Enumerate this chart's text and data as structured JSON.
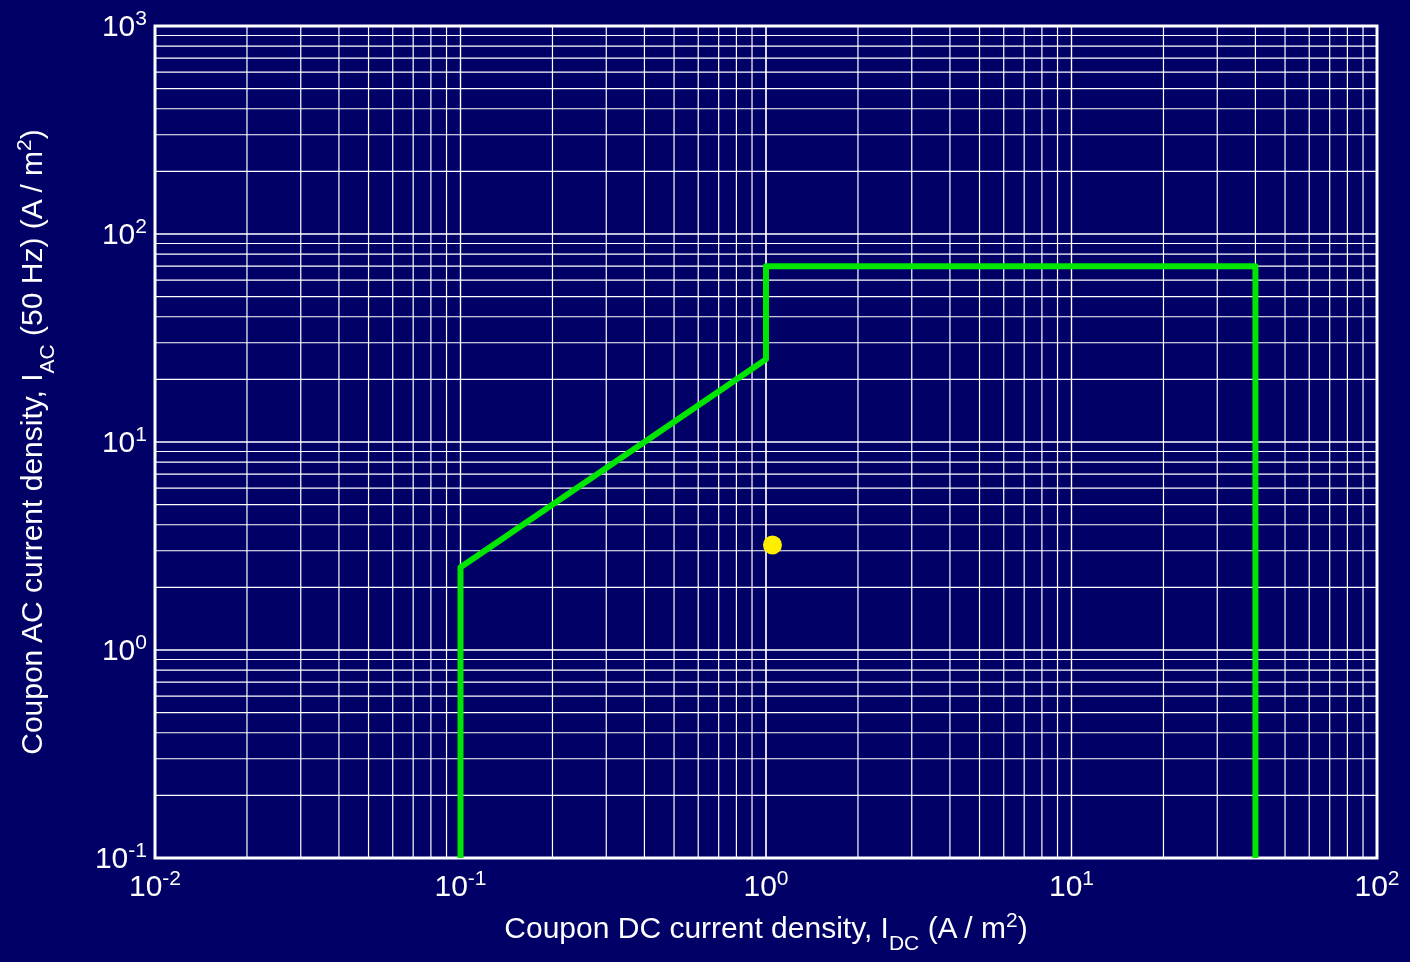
{
  "chart_data": {
    "type": "line",
    "xlabel": "Coupon DC current density, I$_{DC}$ (A / m$^{2}$)",
    "ylabel": "Coupon AC current density, I$_{AC}$ (50 Hz) (A / m$^{2}$)",
    "log": "xy",
    "grid": true,
    "xlim": [
      0.01,
      100
    ],
    "ylim": [
      0.1,
      1000
    ],
    "xticks": [
      {
        "value": 0.01,
        "label": "10$^{-2}$"
      },
      {
        "value": 0.1,
        "label": "10$^{-1}$"
      },
      {
        "value": 1,
        "label": "10$^{0}$"
      },
      {
        "value": 10,
        "label": "10$^{1}$"
      },
      {
        "value": 100,
        "label": "10$^{2}$"
      }
    ],
    "yticks": [
      {
        "value": 0.1,
        "label": "10$^{-1}$"
      },
      {
        "value": 1,
        "label": "10$^{0}$"
      },
      {
        "value": 10,
        "label": "10$^{1}$"
      },
      {
        "value": 100,
        "label": "10$^{2}$"
      },
      {
        "value": 1000,
        "label": "10$^{3}$"
      }
    ],
    "series": [
      {
        "color": "#00e600",
        "line_style": "solid",
        "marker": "none",
        "x": [
          0.1,
          0.1,
          1,
          1,
          40,
          40
        ],
        "values": [
          0.1,
          2.5,
          25,
          70,
          70,
          0.1
        ]
      },
      {
        "type": "scatter",
        "color": "#ffee00",
        "marker": "circle",
        "x": [
          1.05
        ],
        "values": [
          3.2
        ]
      }
    ]
  }
}
